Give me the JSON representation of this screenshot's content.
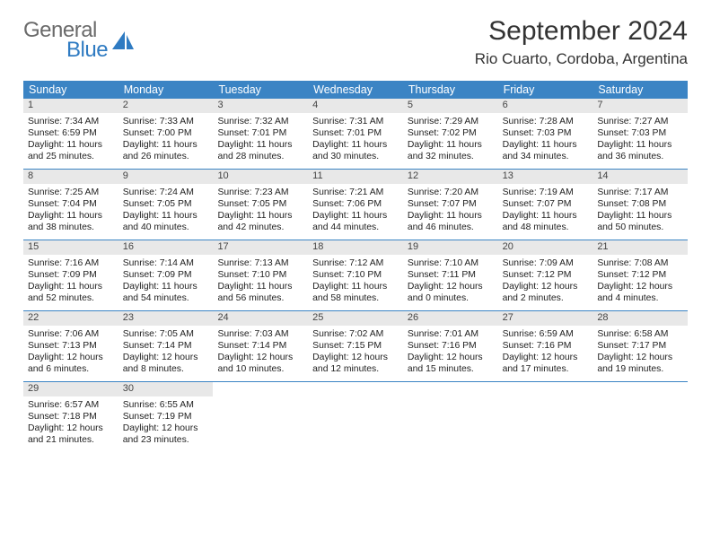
{
  "brand": {
    "main": "General",
    "sub": "Blue"
  },
  "title": "September 2024",
  "location": "Rio Cuarto, Cordoba, Argentina",
  "colors": {
    "header_bg": "#3b84c4",
    "header_fg": "#ffffff",
    "daynum_bg": "#e8e8e8",
    "rule": "#3b84c4",
    "logo_gray": "#6a6a6a",
    "logo_blue": "#2f7bc2"
  },
  "day_names": [
    "Sunday",
    "Monday",
    "Tuesday",
    "Wednesday",
    "Thursday",
    "Friday",
    "Saturday"
  ],
  "weeks": [
    [
      {
        "n": "1",
        "sunrise": "Sunrise: 7:34 AM",
        "sunset": "Sunset: 6:59 PM",
        "day": "Daylight: 11 hours and 25 minutes."
      },
      {
        "n": "2",
        "sunrise": "Sunrise: 7:33 AM",
        "sunset": "Sunset: 7:00 PM",
        "day": "Daylight: 11 hours and 26 minutes."
      },
      {
        "n": "3",
        "sunrise": "Sunrise: 7:32 AM",
        "sunset": "Sunset: 7:01 PM",
        "day": "Daylight: 11 hours and 28 minutes."
      },
      {
        "n": "4",
        "sunrise": "Sunrise: 7:31 AM",
        "sunset": "Sunset: 7:01 PM",
        "day": "Daylight: 11 hours and 30 minutes."
      },
      {
        "n": "5",
        "sunrise": "Sunrise: 7:29 AM",
        "sunset": "Sunset: 7:02 PM",
        "day": "Daylight: 11 hours and 32 minutes."
      },
      {
        "n": "6",
        "sunrise": "Sunrise: 7:28 AM",
        "sunset": "Sunset: 7:03 PM",
        "day": "Daylight: 11 hours and 34 minutes."
      },
      {
        "n": "7",
        "sunrise": "Sunrise: 7:27 AM",
        "sunset": "Sunset: 7:03 PM",
        "day": "Daylight: 11 hours and 36 minutes."
      }
    ],
    [
      {
        "n": "8",
        "sunrise": "Sunrise: 7:25 AM",
        "sunset": "Sunset: 7:04 PM",
        "day": "Daylight: 11 hours and 38 minutes."
      },
      {
        "n": "9",
        "sunrise": "Sunrise: 7:24 AM",
        "sunset": "Sunset: 7:05 PM",
        "day": "Daylight: 11 hours and 40 minutes."
      },
      {
        "n": "10",
        "sunrise": "Sunrise: 7:23 AM",
        "sunset": "Sunset: 7:05 PM",
        "day": "Daylight: 11 hours and 42 minutes."
      },
      {
        "n": "11",
        "sunrise": "Sunrise: 7:21 AM",
        "sunset": "Sunset: 7:06 PM",
        "day": "Daylight: 11 hours and 44 minutes."
      },
      {
        "n": "12",
        "sunrise": "Sunrise: 7:20 AM",
        "sunset": "Sunset: 7:07 PM",
        "day": "Daylight: 11 hours and 46 minutes."
      },
      {
        "n": "13",
        "sunrise": "Sunrise: 7:19 AM",
        "sunset": "Sunset: 7:07 PM",
        "day": "Daylight: 11 hours and 48 minutes."
      },
      {
        "n": "14",
        "sunrise": "Sunrise: 7:17 AM",
        "sunset": "Sunset: 7:08 PM",
        "day": "Daylight: 11 hours and 50 minutes."
      }
    ],
    [
      {
        "n": "15",
        "sunrise": "Sunrise: 7:16 AM",
        "sunset": "Sunset: 7:09 PM",
        "day": "Daylight: 11 hours and 52 minutes."
      },
      {
        "n": "16",
        "sunrise": "Sunrise: 7:14 AM",
        "sunset": "Sunset: 7:09 PM",
        "day": "Daylight: 11 hours and 54 minutes."
      },
      {
        "n": "17",
        "sunrise": "Sunrise: 7:13 AM",
        "sunset": "Sunset: 7:10 PM",
        "day": "Daylight: 11 hours and 56 minutes."
      },
      {
        "n": "18",
        "sunrise": "Sunrise: 7:12 AM",
        "sunset": "Sunset: 7:10 PM",
        "day": "Daylight: 11 hours and 58 minutes."
      },
      {
        "n": "19",
        "sunrise": "Sunrise: 7:10 AM",
        "sunset": "Sunset: 7:11 PM",
        "day": "Daylight: 12 hours and 0 minutes."
      },
      {
        "n": "20",
        "sunrise": "Sunrise: 7:09 AM",
        "sunset": "Sunset: 7:12 PM",
        "day": "Daylight: 12 hours and 2 minutes."
      },
      {
        "n": "21",
        "sunrise": "Sunrise: 7:08 AM",
        "sunset": "Sunset: 7:12 PM",
        "day": "Daylight: 12 hours and 4 minutes."
      }
    ],
    [
      {
        "n": "22",
        "sunrise": "Sunrise: 7:06 AM",
        "sunset": "Sunset: 7:13 PM",
        "day": "Daylight: 12 hours and 6 minutes."
      },
      {
        "n": "23",
        "sunrise": "Sunrise: 7:05 AM",
        "sunset": "Sunset: 7:14 PM",
        "day": "Daylight: 12 hours and 8 minutes."
      },
      {
        "n": "24",
        "sunrise": "Sunrise: 7:03 AM",
        "sunset": "Sunset: 7:14 PM",
        "day": "Daylight: 12 hours and 10 minutes."
      },
      {
        "n": "25",
        "sunrise": "Sunrise: 7:02 AM",
        "sunset": "Sunset: 7:15 PM",
        "day": "Daylight: 12 hours and 12 minutes."
      },
      {
        "n": "26",
        "sunrise": "Sunrise: 7:01 AM",
        "sunset": "Sunset: 7:16 PM",
        "day": "Daylight: 12 hours and 15 minutes."
      },
      {
        "n": "27",
        "sunrise": "Sunrise: 6:59 AM",
        "sunset": "Sunset: 7:16 PM",
        "day": "Daylight: 12 hours and 17 minutes."
      },
      {
        "n": "28",
        "sunrise": "Sunrise: 6:58 AM",
        "sunset": "Sunset: 7:17 PM",
        "day": "Daylight: 12 hours and 19 minutes."
      }
    ],
    [
      {
        "n": "29",
        "sunrise": "Sunrise: 6:57 AM",
        "sunset": "Sunset: 7:18 PM",
        "day": "Daylight: 12 hours and 21 minutes."
      },
      {
        "n": "30",
        "sunrise": "Sunrise: 6:55 AM",
        "sunset": "Sunset: 7:19 PM",
        "day": "Daylight: 12 hours and 23 minutes."
      },
      null,
      null,
      null,
      null,
      null
    ]
  ]
}
